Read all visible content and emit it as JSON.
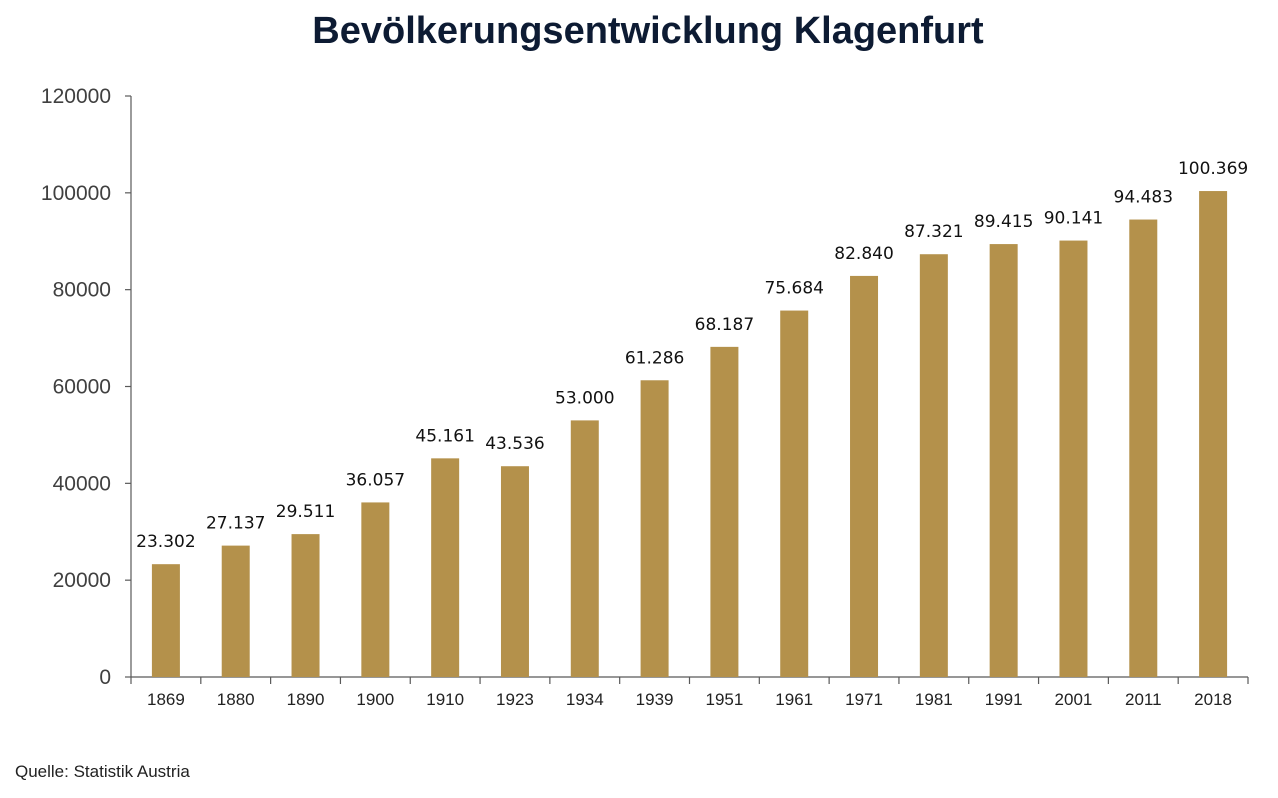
{
  "chart_data": {
    "type": "bar",
    "title": "Bevölkerungsentwicklung Klagenfurt",
    "xlabel": "",
    "ylabel": "",
    "categories": [
      "1869",
      "1880",
      "1890",
      "1900",
      "1910",
      "1923",
      "1934",
      "1939",
      "1951",
      "1961",
      "1971",
      "1981",
      "1991",
      "2001",
      "2011",
      "2018"
    ],
    "values": [
      23302,
      27137,
      29511,
      36057,
      45161,
      43536,
      53000,
      61286,
      68187,
      75684,
      82840,
      87321,
      89415,
      90141,
      94483,
      100369
    ],
    "data_labels": [
      "23.302",
      "27.137",
      "29.511",
      "36.057",
      "45.161",
      "43.536",
      "53.000",
      "61.286",
      "68.187",
      "75.684",
      "82.840",
      "87.321",
      "89.415",
      "90.141",
      "94.483",
      "100.369"
    ],
    "ylim": [
      0,
      120000
    ],
    "yticks": [
      "0",
      "20000",
      "40000",
      "60000",
      "80000",
      "100000",
      "120000"
    ],
    "grid": false,
    "legend": "none",
    "bar_color": "#b4914b"
  },
  "footer": {
    "source": "Quelle: Statistik Austria"
  }
}
